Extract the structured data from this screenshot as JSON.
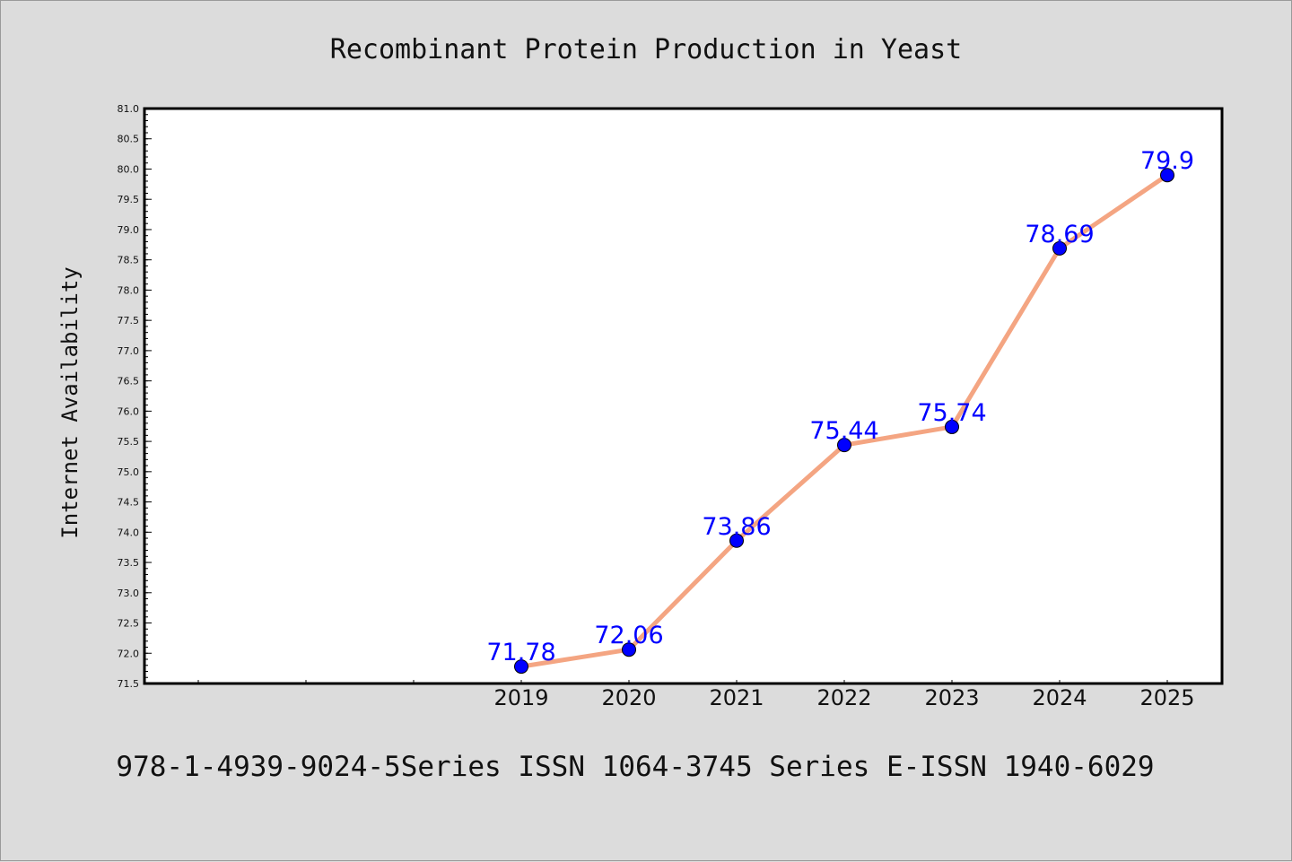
{
  "chart_data": {
    "type": "line",
    "title": "Recombinant Protein Production in Yeast",
    "xlabel": "",
    "ylabel": "Internet Availability",
    "categories": [
      "2019",
      "2020",
      "2021",
      "2022",
      "2023",
      "2024",
      "2025"
    ],
    "series": [
      {
        "values": [
          71.78,
          72.06,
          73.86,
          75.44,
          75.74,
          78.69,
          79.9
        ],
        "data_labels": [
          "71.78",
          "72.06",
          "73.86",
          "75.44",
          "75.74",
          "78.69",
          "79.9"
        ],
        "line_color": "#f4a582",
        "marker_color": "#0000ff"
      }
    ],
    "ylim": [
      71.5,
      81.0
    ],
    "yticks": [
      "71.5",
      "72.0",
      "72.5",
      "73.0",
      "73.5",
      "74.0",
      "74.5",
      "75.0",
      "75.5",
      "76.0",
      "76.5",
      "77.0",
      "77.5",
      "78.0",
      "78.5",
      "79.0",
      "79.5",
      "80.0",
      "80.5",
      "81.0"
    ],
    "grid": false,
    "legend": "none",
    "footer": "978-1-4939-9024-5Series ISSN 1064-3745 Series E-ISSN 1940-6029"
  }
}
